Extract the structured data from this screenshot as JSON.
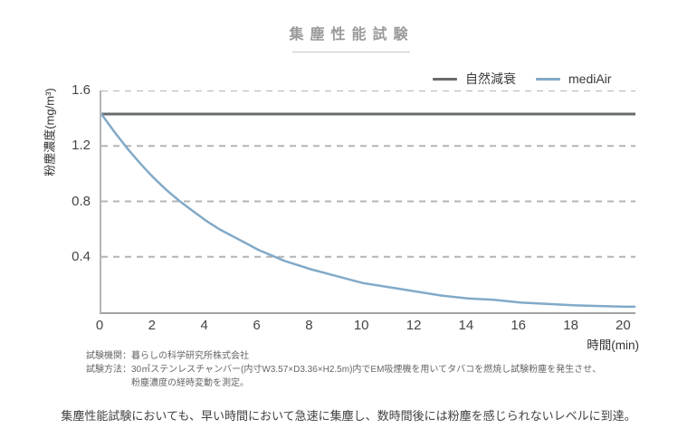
{
  "page": {
    "title": "集塵性能試験",
    "caption": "集塵性能試験においても、早い時間において急速に集塵し、数時間後には粉塵を感じられないレベルに到達。"
  },
  "footnotes": {
    "agency": "試験機関：暮らしの科学研究所株式会社",
    "method_line1": "試験方法：30㎥ステンレスチャンバー(内寸W3.57×D3.36×H2.5m)内でEM吸煙機を用いてタバコを燃焼し試験粉塵を発生させ、",
    "method_line2": "粉塵濃度の経時変動を測定。"
  },
  "chart_data": {
    "type": "line",
    "title": "集塵性能試験",
    "xlabel": "時間(min)",
    "ylabel": "粉塵濃度(mg/m³)",
    "xlim": [
      0,
      20.4
    ],
    "ylim": [
      0,
      1.6
    ],
    "x_ticks": [
      0,
      2,
      4,
      6,
      8,
      10,
      12,
      14,
      16,
      18,
      20
    ],
    "y_ticks": [
      0.4,
      0.8,
      1.2,
      1.6
    ],
    "grid": "horizontal-dashed",
    "legend_position": "top-right",
    "colors": {
      "grid": "#b4b4b4",
      "axis": "#a8a8a8",
      "title": "#9a9a9a"
    },
    "series": [
      {
        "name": "自然減衰",
        "type": "constant",
        "color": "#686b6e",
        "value": 1.43
      },
      {
        "name": "mediAir",
        "type": "curve",
        "color": "#82aac8",
        "x": [
          0,
          0.5,
          1,
          1.5,
          2,
          2.5,
          3,
          3.5,
          4,
          4.5,
          5,
          5.5,
          6,
          7,
          8,
          9,
          10,
          11,
          12,
          13,
          14,
          15,
          16,
          17,
          18,
          19,
          20
        ],
        "y": [
          1.43,
          1.3,
          1.18,
          1.07,
          0.97,
          0.88,
          0.8,
          0.73,
          0.66,
          0.6,
          0.55,
          0.5,
          0.45,
          0.37,
          0.31,
          0.26,
          0.21,
          0.18,
          0.15,
          0.12,
          0.1,
          0.09,
          0.07,
          0.06,
          0.05,
          0.045,
          0.04
        ]
      }
    ]
  }
}
